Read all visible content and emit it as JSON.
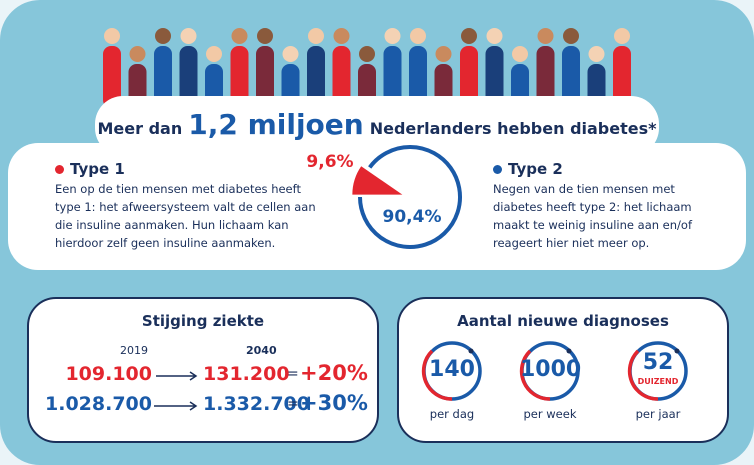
{
  "headline": {
    "prefix": "Meer dan",
    "highlight": "1,2 miljoen",
    "suffix": "Nederlanders hebben diabetes*"
  },
  "types": [
    {
      "name": "Type 1",
      "color": "#e3262f",
      "text": "Een op de tien mensen met diabetes heeft type 1: het afweersysteem valt de cellen aan die insuline aanmaken. Hun lichaam kan hierdoor zelf geen insuline aanmaken."
    },
    {
      "name": "Type 2",
      "color": "#1a5aa8",
      "text": "Negen van de tien mensen met diabetes heeft type 2: het lichaam maakt te weinig insuline aan en/of reageert hier niet meer op."
    }
  ],
  "pie": {
    "type": "pie",
    "values": [
      9.6,
      90.4
    ],
    "value_labels": [
      "9,6%",
      "90,4%"
    ],
    "colors": [
      "#e3262f",
      "#1a5aa8"
    ]
  },
  "growth": {
    "title": "Stijging ziekte",
    "years": [
      "2019",
      "2040"
    ],
    "rows": [
      {
        "from": "109.100",
        "to": "131.200",
        "change": "+20%",
        "color": "#e3262f"
      },
      {
        "from": "1.028.700",
        "to": "1.332.700",
        "change": "+30%",
        "color": "#1a5aa8"
      }
    ]
  },
  "diagnoses": {
    "title": "Aantal nieuwe diagnoses",
    "items": [
      {
        "value": "140",
        "period": "per dag"
      },
      {
        "value": "1000",
        "period": "per week"
      },
      {
        "value": "52",
        "unit": "DUIZEND",
        "period": "per jaar"
      }
    ]
  }
}
